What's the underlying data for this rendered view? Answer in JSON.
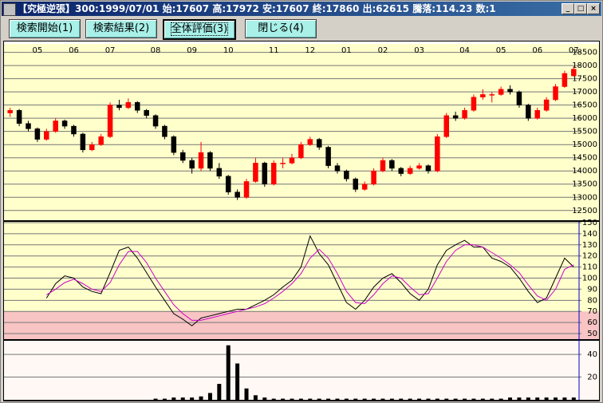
{
  "window": {
    "title": "【究極逆張】300:1999/07/01 始:17607 高:17972 安:17607 終:17860 出:62615 騰落:114.23 数:1",
    "buttons": [
      "検索開始(1)",
      "検索結果(2)",
      "全体評価(3)",
      "閉じる(4)"
    ]
  },
  "chart_data": [
    {
      "type": "candlestick",
      "categories": [
        null,
        null,
        null,
        "05",
        null,
        null,
        null,
        "06",
        null,
        null,
        null,
        "07",
        null,
        null,
        null,
        null,
        "08",
        null,
        null,
        null,
        "09",
        null,
        null,
        null,
        "10",
        null,
        null,
        null,
        null,
        "11",
        null,
        null,
        null,
        "12",
        null,
        null,
        null,
        "01",
        null,
        null,
        null,
        "02",
        null,
        null,
        null,
        "03",
        null,
        null,
        null,
        null,
        "04",
        null,
        null,
        null,
        "05",
        null,
        null,
        null,
        "06",
        null,
        null,
        null,
        "07"
      ],
      "ohlc": [
        [
          16200,
          16400,
          16050,
          16300
        ],
        [
          16300,
          16350,
          15700,
          15800
        ],
        [
          15800,
          15900,
          15500,
          15600
        ],
        [
          15600,
          15650,
          15100,
          15200
        ],
        [
          15200,
          15600,
          15150,
          15500
        ],
        [
          15500,
          16000,
          15450,
          15900
        ],
        [
          15900,
          15950,
          15600,
          15700
        ],
        [
          15700,
          15750,
          15300,
          15400
        ],
        [
          15400,
          15450,
          14700,
          14800
        ],
        [
          14800,
          15100,
          14750,
          15000
        ],
        [
          15000,
          15400,
          14950,
          15300
        ],
        [
          15300,
          16600,
          15250,
          16500
        ],
        [
          16500,
          16700,
          16300,
          16400
        ],
        [
          16400,
          16750,
          16350,
          16600
        ],
        [
          16600,
          16650,
          16200,
          16300
        ],
        [
          16300,
          16350,
          16000,
          16100
        ],
        [
          16100,
          16150,
          15600,
          15700
        ],
        [
          15700,
          15750,
          15200,
          15300
        ],
        [
          15300,
          15350,
          14600,
          14700
        ],
        [
          14700,
          14800,
          14300,
          14400
        ],
        [
          14400,
          14500,
          13900,
          14100
        ],
        [
          14100,
          15100,
          14000,
          14700
        ],
        [
          14700,
          14750,
          14000,
          14100
        ],
        [
          14100,
          14300,
          13700,
          13800
        ],
        [
          13800,
          13850,
          13100,
          13200
        ],
        [
          13200,
          13300,
          12900,
          13000
        ],
        [
          13000,
          13700,
          12950,
          13600
        ],
        [
          13600,
          14500,
          13550,
          14300
        ],
        [
          14300,
          14350,
          13400,
          13500
        ],
        [
          13500,
          14400,
          13450,
          14300
        ],
        [
          14300,
          14500,
          14100,
          14300
        ],
        [
          14300,
          14650,
          14250,
          14500
        ],
        [
          14500,
          15100,
          14450,
          15000
        ],
        [
          15000,
          15300,
          14950,
          15200
        ],
        [
          15200,
          15250,
          14800,
          14900
        ],
        [
          14900,
          14950,
          14100,
          14200
        ],
        [
          14200,
          14300,
          13900,
          14000
        ],
        [
          14000,
          14050,
          13600,
          13700
        ],
        [
          13700,
          13750,
          13200,
          13300
        ],
        [
          13300,
          13600,
          13250,
          13500
        ],
        [
          13500,
          14100,
          13450,
          14000
        ],
        [
          14000,
          14500,
          13950,
          14400
        ],
        [
          14400,
          14450,
          14000,
          14100
        ],
        [
          14100,
          14150,
          13800,
          13900
        ],
        [
          13900,
          14200,
          13850,
          14100
        ],
        [
          14100,
          14300,
          14050,
          14200
        ],
        [
          14200,
          14250,
          13900,
          14000
        ],
        [
          14000,
          15400,
          13950,
          15300
        ],
        [
          15300,
          16200,
          15250,
          16100
        ],
        [
          16100,
          16250,
          15900,
          16000
        ],
        [
          16000,
          16400,
          15950,
          16300
        ],
        [
          16300,
          16900,
          16250,
          16800
        ],
        [
          16800,
          17100,
          16700,
          16900
        ],
        [
          16900,
          17000,
          16600,
          16900
        ],
        [
          16900,
          17200,
          16850,
          17100
        ],
        [
          17100,
          17250,
          16900,
          17000
        ],
        [
          17000,
          17050,
          16400,
          16500
        ],
        [
          16500,
          16550,
          15900,
          16000
        ],
        [
          16000,
          16400,
          15950,
          16300
        ],
        [
          16300,
          16800,
          16250,
          16700
        ],
        [
          16700,
          17300,
          16650,
          17200
        ],
        [
          17200,
          17800,
          17150,
          17700
        ],
        [
          17607,
          17972,
          17607,
          17860
        ]
      ],
      "up_color": "#ff0000",
      "down_color": "#000000",
      "background": "#ffffcc",
      "ylim": [
        12130,
        18820
      ],
      "yticks": [
        12500,
        13000,
        13500,
        14000,
        14500,
        15000,
        15500,
        16000,
        16500,
        17000,
        17500,
        18000,
        18500
      ],
      "grid": true
    },
    {
      "type": "line",
      "background": "#ffffcc",
      "series": [
        {
          "color": "#000000",
          "values": [
            null,
            null,
            null,
            null,
            82,
            95,
            102,
            100,
            92,
            88,
            86,
            105,
            125,
            128,
            118,
            105,
            92,
            80,
            68,
            63,
            57,
            64,
            66,
            68,
            70,
            72,
            72,
            76,
            80,
            85,
            92,
            98,
            110,
            138,
            122,
            112,
            95,
            78,
            72,
            80,
            92,
            100,
            104,
            96,
            86,
            80,
            90,
            112,
            125,
            130,
            134,
            128,
            128,
            118,
            115,
            110,
            100,
            88,
            78,
            82,
            100,
            118,
            110
          ]
        },
        {
          "color": "#cc00cc",
          "values": [
            null,
            null,
            null,
            null,
            85,
            90,
            96,
            99,
            95,
            90,
            88,
            96,
            112,
            124,
            124,
            114,
            100,
            88,
            76,
            68,
            62,
            62,
            64,
            66,
            68,
            70,
            72,
            74,
            77,
            82,
            88,
            95,
            104,
            118,
            126,
            118,
            104,
            88,
            78,
            77,
            85,
            95,
            102,
            100,
            92,
            85,
            86,
            100,
            115,
            125,
            130,
            130,
            128,
            123,
            118,
            112,
            105,
            94,
            84,
            80,
            90,
            108,
            112
          ]
        }
      ],
      "ylim": [
        45,
        150.7
      ],
      "yticks": [
        50,
        60,
        70,
        80,
        90,
        100,
        110,
        120,
        130,
        140,
        150
      ],
      "shade_below": 70,
      "shade_color": "#f8c4c4",
      "grid": true
    },
    {
      "type": "bar",
      "background": "#fff8f4",
      "color": "#000000",
      "values": [
        0,
        0,
        0,
        0,
        0,
        0,
        0,
        0,
        0,
        0,
        0,
        0,
        0,
        0,
        0,
        0,
        1,
        1,
        2,
        2,
        2,
        3,
        6,
        14,
        48,
        32,
        10,
        4,
        2,
        1,
        1,
        1,
        1,
        1,
        1,
        1,
        1,
        1,
        1,
        1,
        1,
        1,
        1,
        1,
        1,
        1,
        1,
        1,
        1,
        1,
        1,
        1,
        1,
        1,
        1,
        2,
        2,
        2,
        2,
        2,
        2,
        2,
        2
      ],
      "ylim": [
        0,
        52
      ],
      "yticks": [
        20,
        40
      ],
      "grid": true
    }
  ]
}
